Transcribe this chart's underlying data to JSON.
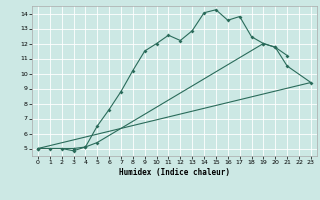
{
  "xlabel": "Humidex (Indice chaleur)",
  "bg_color": "#cce8e4",
  "grid_color": "#ffffff",
  "line_color": "#2a6b5a",
  "xlim": [
    -0.5,
    23.5
  ],
  "ylim": [
    4.5,
    14.5
  ],
  "xticks": [
    0,
    1,
    2,
    3,
    4,
    5,
    6,
    7,
    8,
    9,
    10,
    11,
    12,
    13,
    14,
    15,
    16,
    17,
    18,
    19,
    20,
    21,
    22,
    23
  ],
  "yticks": [
    5,
    6,
    7,
    8,
    9,
    10,
    11,
    12,
    13,
    14
  ],
  "line1_x": [
    0,
    1,
    2,
    3,
    4,
    5,
    6,
    7,
    8,
    9,
    10,
    11,
    12,
    13,
    14,
    15,
    16,
    17,
    18,
    19,
    20,
    21
  ],
  "line1_y": [
    5.0,
    5.0,
    5.0,
    4.85,
    5.1,
    6.5,
    7.6,
    8.8,
    10.2,
    11.5,
    12.0,
    12.55,
    12.2,
    12.85,
    14.05,
    14.25,
    13.55,
    13.8,
    12.45,
    12.0,
    11.75,
    11.2
  ],
  "line2_x": [
    0,
    3,
    4,
    5,
    19,
    20,
    21,
    23
  ],
  "line2_y": [
    5.0,
    5.0,
    5.1,
    5.4,
    12.0,
    11.75,
    10.5,
    9.4
  ],
  "line3_x": [
    0,
    23
  ],
  "line3_y": [
    5.0,
    9.4
  ]
}
